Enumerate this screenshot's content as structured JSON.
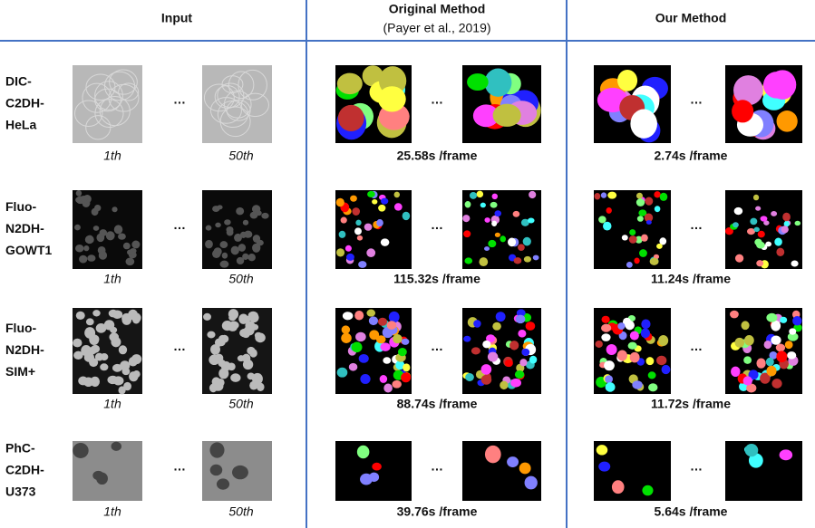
{
  "header": {
    "input": "Input",
    "original": "Original Method",
    "original_citation": "(Payer et al., 2019)",
    "ours": "Our Method"
  },
  "ellipsis": "…",
  "rows": [
    {
      "name": [
        "DIC-",
        "C2DH-",
        "HeLa"
      ],
      "frames": [
        "1th",
        "50th"
      ],
      "original_time": "25.58s /frame",
      "ours_time": "2.74s /frame"
    },
    {
      "name": [
        "Fluo-",
        "N2DH-",
        "GOWT1"
      ],
      "frames": [
        "1th",
        "50th"
      ],
      "original_time": "115.32s /frame",
      "ours_time": "11.24s /frame"
    },
    {
      "name": [
        "Fluo-",
        "N2DH-",
        "SIM+"
      ],
      "frames": [
        "1th",
        "50th"
      ],
      "original_time": "88.74s /frame",
      "ours_time": "11.72s /frame"
    },
    {
      "name": [
        "PhC-",
        "C2DH-",
        "U373"
      ],
      "frames": [
        "1th",
        "50th"
      ],
      "original_time": "39.76s /frame",
      "ours_time": "5.64s /frame"
    }
  ]
}
